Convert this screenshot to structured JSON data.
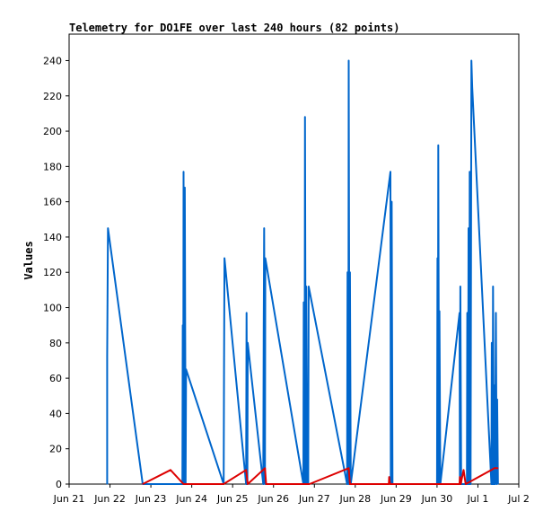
{
  "chart_data": {
    "type": "line",
    "title": "Telemetry for DO1FE over last 240 hours (82 points)",
    "ylabel": "Values",
    "xlabel": "",
    "ylim": [
      0,
      255
    ],
    "xlim": [
      0,
      11
    ],
    "x_tick_labels": [
      "Jun 21",
      "Jun 22",
      "Jun 23",
      "Jun 24",
      "Jun 25",
      "Jun 26",
      "Jun 27",
      "Jun 28",
      "Jun 29",
      "Jun 30",
      "Jul 1",
      "Jul 2"
    ],
    "y_ticks": [
      0,
      20,
      40,
      60,
      80,
      100,
      120,
      140,
      160,
      180,
      200,
      220,
      240
    ],
    "colors": {
      "primary": "#0066cc",
      "secondary": "#dd0000"
    },
    "series": [
      {
        "color": "#0066cc",
        "points": [
          [
            0.93,
            0
          ],
          [
            0.93,
            72
          ],
          [
            0.95,
            145
          ],
          [
            1.8,
            0
          ],
          [
            2.77,
            0
          ],
          [
            2.78,
            90
          ],
          [
            2.79,
            0
          ],
          [
            2.8,
            177
          ],
          [
            2.82,
            0
          ],
          [
            2.83,
            168
          ],
          [
            2.85,
            0
          ],
          [
            2.86,
            65
          ],
          [
            3.78,
            0
          ],
          [
            3.79,
            65
          ],
          [
            3.8,
            128
          ],
          [
            4.33,
            0
          ],
          [
            4.34,
            97
          ],
          [
            4.36,
            0
          ],
          [
            4.37,
            80
          ],
          [
            4.75,
            0
          ],
          [
            4.76,
            90
          ],
          [
            4.77,
            145
          ],
          [
            4.79,
            0
          ],
          [
            4.8,
            128
          ],
          [
            5.73,
            0
          ],
          [
            5.74,
            103
          ],
          [
            5.76,
            0
          ],
          [
            5.77,
            208
          ],
          [
            5.79,
            0
          ],
          [
            5.8,
            112
          ],
          [
            5.82,
            0
          ],
          [
            5.83,
            55
          ],
          [
            5.85,
            0
          ],
          [
            5.86,
            112
          ],
          [
            6.8,
            0
          ],
          [
            6.81,
            120
          ],
          [
            6.83,
            0
          ],
          [
            6.84,
            240
          ],
          [
            6.86,
            0
          ],
          [
            6.87,
            120
          ],
          [
            6.89,
            0
          ],
          [
            7.86,
            177
          ],
          [
            7.87,
            0
          ],
          [
            7.88,
            90
          ],
          [
            7.89,
            160
          ],
          [
            7.91,
            0
          ],
          [
            9.0,
            0
          ],
          [
            9.01,
            128
          ],
          [
            9.02,
            0
          ],
          [
            9.03,
            192
          ],
          [
            9.05,
            0
          ],
          [
            9.06,
            98
          ],
          [
            9.08,
            0
          ],
          [
            9.55,
            97
          ],
          [
            9.56,
            0
          ],
          [
            9.57,
            112
          ],
          [
            9.59,
            0
          ],
          [
            9.73,
            0
          ],
          [
            9.74,
            97
          ],
          [
            9.76,
            0
          ],
          [
            9.77,
            145
          ],
          [
            9.79,
            0
          ],
          [
            9.8,
            177
          ],
          [
            9.82,
            0
          ],
          [
            9.84,
            240
          ],
          [
            9.86,
            225
          ],
          [
            10.33,
            0
          ],
          [
            10.34,
            80
          ],
          [
            10.36,
            0
          ],
          [
            10.37,
            112
          ],
          [
            10.39,
            0
          ],
          [
            10.4,
            56
          ],
          [
            10.42,
            0
          ],
          [
            10.44,
            97
          ],
          [
            10.46,
            0
          ],
          [
            10.47,
            48
          ],
          [
            10.49,
            0
          ]
        ]
      },
      {
        "color": "#dd0000",
        "points": [
          [
            1.8,
            0
          ],
          [
            2.48,
            8
          ],
          [
            2.8,
            0
          ],
          [
            3.78,
            0
          ],
          [
            4.33,
            8
          ],
          [
            4.37,
            0
          ],
          [
            4.79,
            9
          ],
          [
            4.82,
            0
          ],
          [
            5.88,
            0
          ],
          [
            6.84,
            9
          ],
          [
            6.87,
            0
          ],
          [
            7.82,
            0
          ],
          [
            7.83,
            4
          ],
          [
            7.85,
            0
          ],
          [
            9.06,
            0
          ],
          [
            9.55,
            0
          ],
          [
            9.56,
            4
          ],
          [
            9.58,
            0
          ],
          [
            9.65,
            8
          ],
          [
            9.7,
            0
          ],
          [
            10.33,
            8
          ],
          [
            10.4,
            9
          ],
          [
            10.49,
            9
          ]
        ]
      }
    ]
  }
}
